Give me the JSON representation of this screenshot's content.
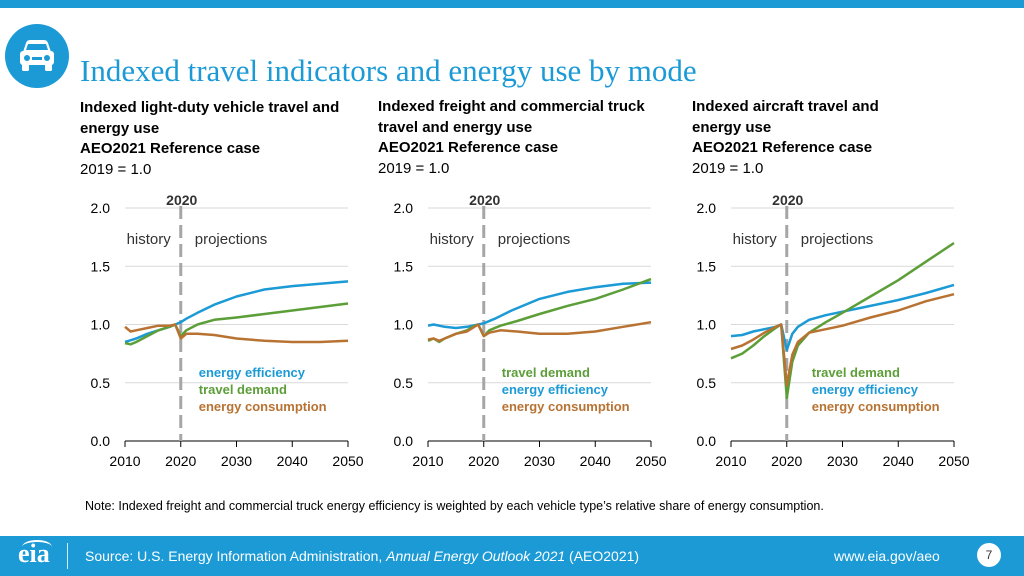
{
  "header": {
    "title": "Indexed travel indicators and energy use by mode",
    "icon": "car-icon"
  },
  "colors": {
    "accent": "#1b9ad6",
    "energy_efficiency": "#1b9ad6",
    "travel_demand": "#5c9e38",
    "energy_consumption": "#b87333",
    "grid": "#d9d9d9",
    "divider": "#a6a6a6"
  },
  "chart_data": [
    {
      "type": "line",
      "title": "Indexed light-duty vehicle travel and energy use",
      "subtitle": "AEO2021 Reference case",
      "note": "2019 = 1.0",
      "xlabel": "",
      "ylabel": "",
      "xlim": [
        2010,
        2050
      ],
      "ylim": [
        0,
        2
      ],
      "x_ticks": [
        "2010",
        "2020",
        "2030",
        "2040",
        "2050"
      ],
      "y_ticks": [
        "0.0",
        "0.5",
        "1.0",
        "1.5",
        "2.0"
      ],
      "divider_year": 2020,
      "divider_label": "2020",
      "history_label": "history",
      "projections_label": "projections",
      "series": [
        {
          "name": "energy efficiency",
          "key": "energy_efficiency",
          "x": [
            2010,
            2012,
            2014,
            2016,
            2018,
            2019,
            2020,
            2021,
            2023,
            2026,
            2030,
            2035,
            2040,
            2045,
            2050
          ],
          "y": [
            0.85,
            0.88,
            0.92,
            0.95,
            0.98,
            1.0,
            1.02,
            1.05,
            1.1,
            1.17,
            1.24,
            1.3,
            1.33,
            1.35,
            1.37
          ]
        },
        {
          "name": "travel demand",
          "key": "travel_demand",
          "x": [
            2010,
            2011,
            2012,
            2014,
            2016,
            2018,
            2019,
            2020,
            2021,
            2023,
            2026,
            2030,
            2035,
            2040,
            2045,
            2050
          ],
          "y": [
            0.84,
            0.83,
            0.85,
            0.9,
            0.95,
            0.98,
            1.0,
            0.9,
            0.95,
            1.0,
            1.04,
            1.06,
            1.09,
            1.12,
            1.15,
            1.18
          ]
        },
        {
          "name": "energy consumption",
          "key": "energy_consumption",
          "x": [
            2010,
            2011,
            2012,
            2014,
            2016,
            2018,
            2019,
            2020,
            2021,
            2023,
            2026,
            2030,
            2035,
            2040,
            2045,
            2050
          ],
          "y": [
            0.98,
            0.94,
            0.95,
            0.97,
            0.99,
            0.99,
            1.0,
            0.88,
            0.92,
            0.92,
            0.91,
            0.88,
            0.86,
            0.85,
            0.85,
            0.86
          ]
        }
      ],
      "legend": [
        "energy efficiency",
        "travel demand",
        "energy consumption"
      ]
    },
    {
      "type": "line",
      "title": "Indexed freight and commercial truck travel and energy use",
      "subtitle": "AEO2021 Reference case",
      "note": "2019 = 1.0",
      "xlabel": "",
      "ylabel": "",
      "xlim": [
        2010,
        2050
      ],
      "ylim": [
        0,
        2
      ],
      "x_ticks": [
        "2010",
        "2020",
        "2030",
        "2040",
        "2050"
      ],
      "y_ticks": [
        "0.0",
        "0.5",
        "1.0",
        "1.5",
        "2.0"
      ],
      "divider_year": 2020,
      "divider_label": "2020",
      "history_label": "history",
      "projections_label": "projections",
      "series": [
        {
          "name": "energy efficiency",
          "key": "energy_efficiency",
          "x": [
            2010,
            2011,
            2013,
            2015,
            2017,
            2019,
            2020,
            2022,
            2025,
            2030,
            2035,
            2040,
            2045,
            2050
          ],
          "y": [
            0.99,
            1.0,
            0.98,
            0.97,
            0.98,
            1.0,
            1.01,
            1.05,
            1.12,
            1.22,
            1.28,
            1.32,
            1.35,
            1.36
          ]
        },
        {
          "name": "travel demand",
          "key": "travel_demand",
          "x": [
            2010,
            2011,
            2012,
            2013,
            2015,
            2017,
            2018,
            2019,
            2020,
            2021,
            2023,
            2026,
            2030,
            2035,
            2040,
            2045,
            2050
          ],
          "y": [
            0.86,
            0.88,
            0.85,
            0.88,
            0.92,
            0.95,
            0.98,
            1.0,
            0.9,
            0.95,
            0.99,
            1.03,
            1.09,
            1.16,
            1.22,
            1.3,
            1.39
          ]
        },
        {
          "name": "energy consumption",
          "key": "energy_consumption",
          "x": [
            2010,
            2011,
            2012,
            2013,
            2015,
            2017,
            2018,
            2019,
            2020,
            2021,
            2023,
            2026,
            2030,
            2035,
            2040,
            2045,
            2050
          ],
          "y": [
            0.87,
            0.88,
            0.86,
            0.88,
            0.92,
            0.94,
            0.97,
            1.0,
            0.9,
            0.93,
            0.95,
            0.94,
            0.92,
            0.92,
            0.94,
            0.98,
            1.02
          ]
        }
      ],
      "legend": [
        "travel demand",
        "energy efficiency",
        "energy consumption"
      ]
    },
    {
      "type": "line",
      "title": "Indexed aircraft travel and energy use",
      "subtitle": "AEO2021 Reference case",
      "note": "2019 = 1.0",
      "xlabel": "",
      "ylabel": "",
      "xlim": [
        2010,
        2050
      ],
      "ylim": [
        0,
        2
      ],
      "x_ticks": [
        "2010",
        "2020",
        "2030",
        "2040",
        "2050"
      ],
      "y_ticks": [
        "0.0",
        "0.5",
        "1.0",
        "1.5",
        "2.0"
      ],
      "divider_year": 2020,
      "divider_label": "2020",
      "history_label": "history",
      "projections_label": "projections",
      "series": [
        {
          "name": "energy efficiency",
          "key": "energy_efficiency",
          "x": [
            2010,
            2012,
            2014,
            2016,
            2018,
            2019,
            2020,
            2021,
            2022,
            2024,
            2027,
            2030,
            2035,
            2040,
            2045,
            2050
          ],
          "y": [
            0.9,
            0.91,
            0.94,
            0.96,
            0.98,
            1.0,
            0.78,
            0.92,
            0.98,
            1.04,
            1.08,
            1.11,
            1.16,
            1.21,
            1.27,
            1.34
          ]
        },
        {
          "name": "travel demand",
          "key": "travel_demand",
          "x": [
            2010,
            2012,
            2014,
            2016,
            2018,
            2019,
            2020,
            2021,
            2022,
            2024,
            2027,
            2030,
            2035,
            2040,
            2045,
            2050
          ],
          "y": [
            0.71,
            0.75,
            0.82,
            0.9,
            0.97,
            1.0,
            0.37,
            0.68,
            0.82,
            0.93,
            1.02,
            1.1,
            1.24,
            1.38,
            1.54,
            1.7
          ]
        },
        {
          "name": "energy consumption",
          "key": "energy_consumption",
          "x": [
            2010,
            2012,
            2014,
            2016,
            2018,
            2019,
            2020,
            2021,
            2022,
            2024,
            2027,
            2030,
            2035,
            2040,
            2045,
            2050
          ],
          "y": [
            0.79,
            0.82,
            0.87,
            0.93,
            0.98,
            1.0,
            0.48,
            0.74,
            0.85,
            0.93,
            0.96,
            0.99,
            1.06,
            1.12,
            1.2,
            1.26
          ]
        }
      ],
      "legend": [
        "travel demand",
        "energy efficiency",
        "energy consumption"
      ]
    }
  ],
  "note": "Note: Indexed freight and commercial truck energy efficiency is weighted by each vehicle type’s relative share of energy consumption.",
  "footer": {
    "logo": "eia",
    "source_prefix": "Source: U.S. Energy Information Administration, ",
    "source_title": "Annual Energy Outlook 2021",
    "source_suffix": " (AEO2021)",
    "url": "www.eia.gov/aeo",
    "page": "7"
  }
}
